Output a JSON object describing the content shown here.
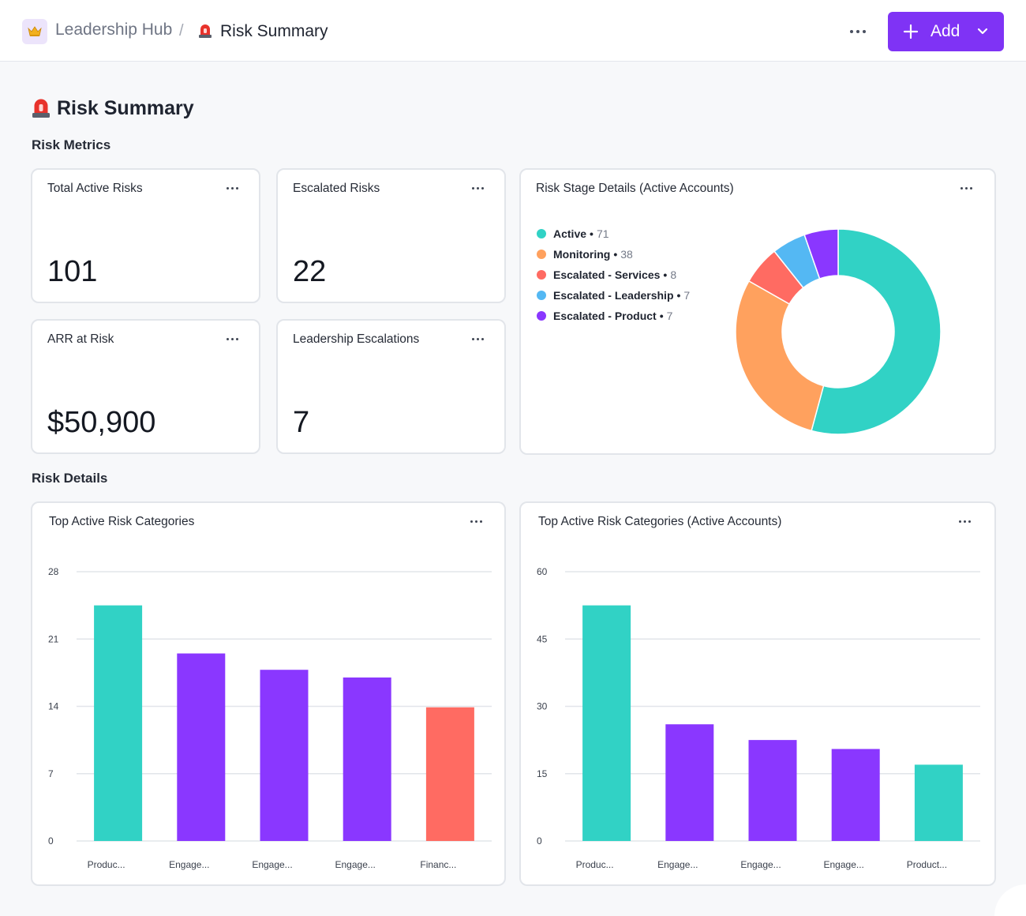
{
  "header": {
    "hub_icon": "crown-icon",
    "hub_name": "Leadership Hub",
    "separator": "/",
    "current_icon": "siren-icon",
    "current_page": "Risk Summary",
    "add_label": "Add"
  },
  "page": {
    "title": "Risk Summary",
    "section_metrics": "Risk Metrics",
    "section_details": "Risk Details"
  },
  "metrics": [
    {
      "title": "Total Active Risks",
      "value": "101"
    },
    {
      "title": "Escalated Risks",
      "value": "22"
    },
    {
      "title": "ARR at Risk",
      "value": "$50,900"
    },
    {
      "title": "Leadership Escalations",
      "value": "7"
    }
  ],
  "colors": {
    "accent": "#7f33f5",
    "teal": "#31d2c5",
    "orange": "#ffa15e",
    "coral": "#ff6b62",
    "sky": "#54b8f3",
    "purple": "#8a37ff"
  },
  "chart_data": [
    {
      "type": "pie",
      "title": "Risk Stage Details (Active Accounts)",
      "donut": true,
      "labels": [
        "Active",
        "Monitoring",
        "Escalated - Services",
        "Escalated - Leadership",
        "Escalated - Product"
      ],
      "values": [
        71,
        38,
        8,
        7,
        7
      ],
      "colors": [
        "#31d2c5",
        "#ffa15e",
        "#ff6b62",
        "#54b8f3",
        "#8a37ff"
      ],
      "legend": "left"
    },
    {
      "type": "bar",
      "title": "Top Active Risk Categories",
      "categories": [
        "Produc...",
        "Engage...",
        "Engage...",
        "Engage...",
        "Financ..."
      ],
      "values": [
        24.5,
        19.5,
        17.8,
        17.0,
        13.9
      ],
      "colors": [
        "#31d2c5",
        "#8a37ff",
        "#8a37ff",
        "#8a37ff",
        "#ff6b62"
      ],
      "yticks": [
        0,
        7,
        14,
        21,
        28
      ],
      "ylim": [
        0,
        28
      ],
      "grid": true
    },
    {
      "type": "bar",
      "title": "Top Active Risk Categories (Active Accounts)",
      "categories": [
        "Produc...",
        "Engage...",
        "Engage...",
        "Engage...",
        "Product..."
      ],
      "values": [
        52.5,
        26,
        22.5,
        20.5,
        17
      ],
      "colors": [
        "#31d2c5",
        "#8a37ff",
        "#8a37ff",
        "#8a37ff",
        "#31d2c5"
      ],
      "yticks": [
        0,
        15,
        30,
        45,
        60
      ],
      "ylim": [
        0,
        60
      ],
      "grid": true
    }
  ]
}
